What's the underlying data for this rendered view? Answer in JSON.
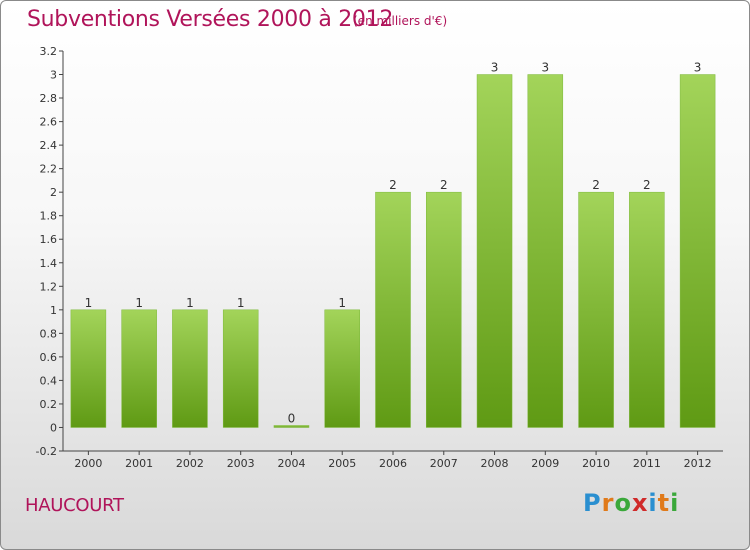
{
  "title": "Subventions Versées 2000 à 2012",
  "subtitle": "(en milliers d'€)",
  "town": "HAUCOURT",
  "logo": {
    "letters": [
      "P",
      "r",
      "o",
      "x",
      "i",
      "t",
      "i"
    ],
    "colors": [
      "#2a8fd0",
      "#e07a1a",
      "#3aa83a",
      "#d02a2a",
      "#2a8fd0",
      "#e07a1a",
      "#3aa83a"
    ]
  },
  "colors": {
    "bar_light": "#a3d45a",
    "bar_dark": "#5f9a14",
    "title": "#b0145a"
  },
  "chart_data": {
    "type": "bar",
    "title": "Subventions Versées 2000 à 2012",
    "subtitle": "(en milliers d'€)",
    "categories": [
      "2000",
      "2001",
      "2002",
      "2003",
      "2004",
      "2005",
      "2006",
      "2007",
      "2008",
      "2009",
      "2010",
      "2011",
      "2012"
    ],
    "values": [
      1,
      1,
      1,
      1,
      0,
      1,
      2,
      2,
      3,
      3,
      2,
      2,
      3
    ],
    "labels": [
      "1",
      "1",
      "1",
      "1",
      "0",
      "1",
      "2",
      "2",
      "3",
      "3",
      "2",
      "2",
      "3"
    ],
    "ylim": [
      -0.2,
      3.2
    ],
    "yticks": [
      -0.2,
      0,
      0.2,
      0.4,
      0.6,
      0.8,
      1,
      1.2,
      1.4,
      1.6,
      1.8,
      2,
      2.2,
      2.4,
      2.6,
      2.8,
      3,
      3.2
    ],
    "ytick_labels": [
      "-0.2",
      "0",
      "0.2",
      "0.4",
      "0.6",
      "0.8",
      "1",
      "1.2",
      "1.4",
      "1.6",
      "1.8",
      "2",
      "2.2",
      "2.4",
      "2.6",
      "2.8",
      "3",
      "3.2"
    ],
    "grid": false,
    "legend": "none"
  }
}
